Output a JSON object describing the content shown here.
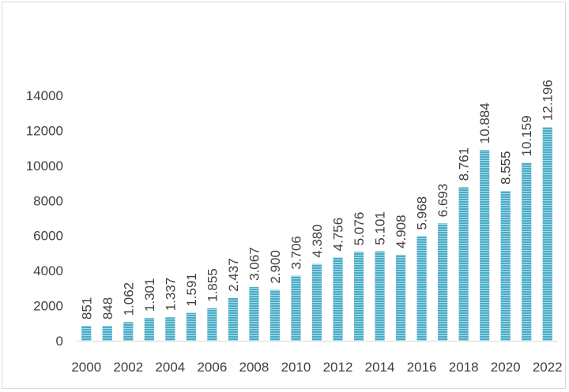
{
  "chart_data": {
    "type": "bar",
    "categories": [
      "2000",
      "2001",
      "2002",
      "2003",
      "2004",
      "2005",
      "2006",
      "2007",
      "2008",
      "2009",
      "2010",
      "2011",
      "2012",
      "2013",
      "2014",
      "2015",
      "2016",
      "2017",
      "2018",
      "2019",
      "2020",
      "2021",
      "2022"
    ],
    "values": [
      851,
      848,
      1062,
      1301,
      1337,
      1591,
      1855,
      2437,
      3067,
      2900,
      3706,
      4380,
      4756,
      5076,
      5101,
      4908,
      5968,
      6693,
      8761,
      10884,
      8555,
      10159,
      12196
    ],
    "data_labels": [
      "851",
      "848",
      "1.062",
      "1.301",
      "1.337",
      "1.591",
      "1.855",
      "2.437",
      "3.067",
      "2.900",
      "3.706",
      "4.380",
      "4.756",
      "5.076",
      "5.101",
      "4.908",
      "5.968",
      "6.693",
      "8.761",
      "10.884",
      "8.555",
      "10.159",
      "12.196"
    ],
    "x_tick_labels": [
      "2000",
      "2002",
      "2004",
      "2006",
      "2008",
      "2010",
      "2012",
      "2014",
      "2016",
      "2018",
      "2020",
      "2022"
    ],
    "y_ticks": [
      0,
      2000,
      4000,
      6000,
      8000,
      10000,
      12000,
      14000
    ],
    "ylim": [
      0,
      14000
    ],
    "title": "",
    "xlabel": "",
    "ylabel": "",
    "grid": false,
    "legend": "none",
    "bar_color": "#4bacc6",
    "bar_stripe_color": "#9dd3e3"
  }
}
